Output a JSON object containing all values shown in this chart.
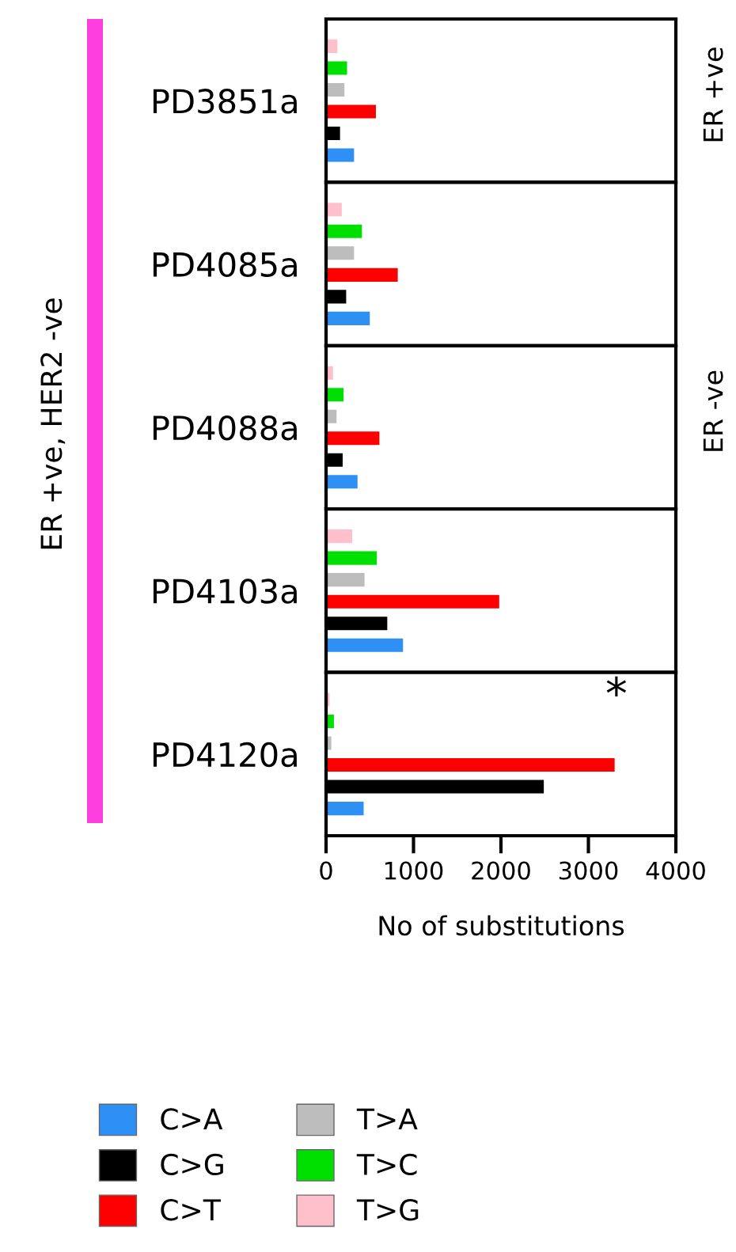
{
  "chart_data": [
    {
      "type": "bar",
      "orientation": "horizontal",
      "categories": [
        "PD3851a"
      ],
      "xlim": [
        0,
        4000
      ],
      "xticks": [
        0,
        1000,
        2000,
        3000,
        4000
      ],
      "tick_labels": "y",
      "legend": "bottom",
      "annotations": [
        "ER +ve, HER2 -ve",
        "ER +ve",
        "ER -ve"
      ],
      "series": [
        {
          "name": "C>A",
          "color": "#2e8ff5",
          "values": [
            320
          ]
        },
        {
          "name": "C>G",
          "color": "#000000",
          "values": [
            160
          ]
        },
        {
          "name": "C>T",
          "color": "#ff0000",
          "values": [
            570
          ]
        },
        {
          "name": "T>A",
          "color": "#bdbdbd",
          "values": [
            210
          ]
        },
        {
          "name": "T>C",
          "color": "#00e000",
          "values": [
            240
          ]
        },
        {
          "name": "T>G",
          "color": "#ffc0cb",
          "values": [
            130
          ]
        }
      ]
    },
    {
      "type": "bar",
      "orientation": "horizontal",
      "categories": [
        "PD4085a"
      ],
      "xlim": [
        0,
        4000
      ],
      "xticks": [
        0,
        1000,
        2000,
        3000,
        4000
      ],
      "tick_labels": "y",
      "series": [
        {
          "color": "#2e8ff5",
          "values": [
            500
          ]
        },
        {
          "color": "#000000",
          "values": [
            230
          ]
        },
        {
          "color": "#ff0000",
          "values": [
            820
          ]
        },
        {
          "color": "#bdbdbd",
          "values": [
            320
          ]
        },
        {
          "color": "#00e000",
          "values": [
            410
          ]
        },
        {
          "color": "#ffc0cb",
          "values": [
            180
          ]
        }
      ]
    },
    {
      "type": "bar",
      "orientation": "horizontal",
      "categories": [
        "PD4088a"
      ],
      "xlim": [
        0,
        4000
      ],
      "xticks": [
        0,
        1000,
        2000,
        3000,
        4000
      ],
      "tick_labels": "y",
      "series": [
        {
          "color": "#2e8ff5",
          "values": [
            360
          ]
        },
        {
          "color": "#000000",
          "values": [
            190
          ]
        },
        {
          "color": "#ff0000",
          "values": [
            610
          ]
        },
        {
          "color": "#bdbdbd",
          "values": [
            120
          ]
        },
        {
          "color": "#00e000",
          "values": [
            200
          ]
        },
        {
          "color": "#ffc0cb",
          "values": [
            80
          ]
        }
      ]
    },
    {
      "type": "bar",
      "orientation": "horizontal",
      "categories": [
        "PD4103a"
      ],
      "xlim": [
        0,
        4000
      ],
      "xticks": [
        0,
        1000,
        2000,
        3000,
        4000
      ],
      "tick_labels": "y",
      "series": [
        {
          "color": "#2e8ff5",
          "values": [
            880
          ]
        },
        {
          "color": "#000000",
          "values": [
            700
          ]
        },
        {
          "color": "#ff0000",
          "values": [
            1980
          ]
        },
        {
          "color": "#bdbdbd",
          "values": [
            440
          ]
        },
        {
          "color": "#00e000",
          "values": [
            580
          ]
        },
        {
          "color": "#ffc0cb",
          "values": [
            300
          ]
        }
      ]
    },
    {
      "type": "bar",
      "orientation": "horizontal",
      "categories": [
        "PD4120a"
      ],
      "xlim": [
        0,
        4000
      ],
      "xticks": [
        0,
        1000,
        2000,
        3000,
        4000
      ],
      "xlabel": "No of substitutions",
      "annotations": [
        "*"
      ],
      "series": [
        {
          "color": "#2e8ff5",
          "values": [
            430
          ]
        },
        {
          "color": "#000000",
          "values": [
            2490
          ]
        },
        {
          "color": "#ff0000",
          "values": [
            3300
          ]
        },
        {
          "color": "#bdbdbd",
          "values": [
            60
          ]
        },
        {
          "color": "#00e000",
          "values": [
            90
          ]
        },
        {
          "color": "#ffc0cb",
          "values": [
            40
          ]
        }
      ]
    }
  ]
}
